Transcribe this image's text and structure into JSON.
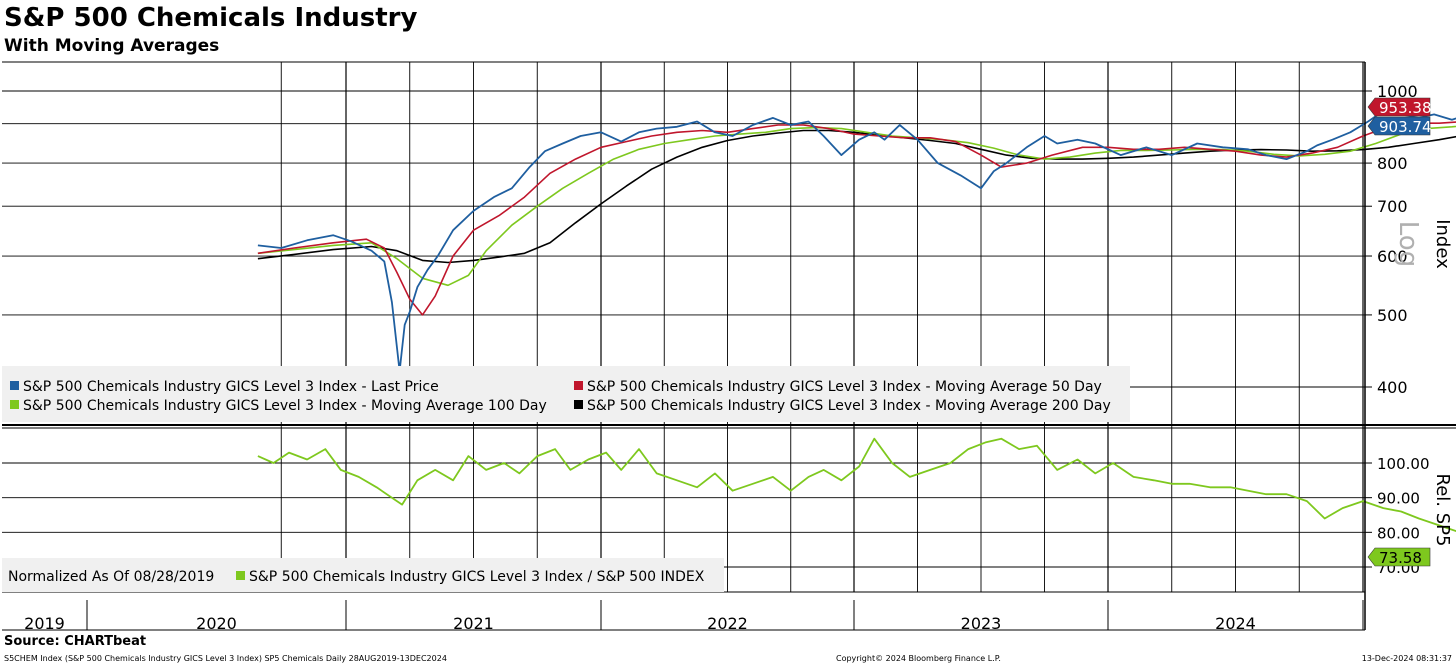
{
  "title": "S&P 500 Chemicals Industry",
  "subtitle": "With Moving Averages",
  "source": "Source: CHARTbeat",
  "footer": {
    "left": "S5CHEM Index (S&P 500 Chemicals Industry GICS Level 3 Index) SP5 Chemicals  Daily 28AUG2019-13DEC2024",
    "center": "Copyright© 2024 Bloomberg Finance L.P.",
    "right": "13-Dec-2024 08:31:37"
  },
  "colors": {
    "last_price": "#1f5fa0",
    "ma50": "#c0162c",
    "ma100": "#7ec81e",
    "ma200": "#000000",
    "relative": "#7ec81e"
  },
  "chart_data": [
    {
      "type": "line",
      "panel": "upper",
      "scale": "log",
      "axis_label": "Index",
      "axis_annotation": "Log",
      "ylim": [
        355,
        1090
      ],
      "yticks": [
        400,
        500,
        600,
        700,
        800,
        1000
      ],
      "ytick_labels": [
        "400",
        "500",
        "600",
        "700",
        "800",
        "1000"
      ],
      "x_categories": [
        "2019",
        "2020",
        "2021",
        "2022",
        "2023",
        "2024"
      ],
      "grid": true,
      "legend_position": "bottom-left",
      "last_value_labels": [
        {
          "series": "S&P 500 Chemicals Industry GICS Level 3 Index - Moving Average 50 Day",
          "text": "953.38",
          "value": 953.38
        },
        {
          "series": "S&P 500 Chemicals Industry GICS Level 3 Index - Last Price",
          "text": "903.74",
          "value": 903.74
        }
      ],
      "series": [
        {
          "name": "S&P 500 Chemicals Industry GICS Level 3 Index - Last Price",
          "key": "last_price",
          "x": [
            2019.66,
            2019.75,
            2019.85,
            2019.95,
            2020.02,
            2020.1,
            2020.15,
            2020.18,
            2020.21,
            2020.23,
            2020.25,
            2020.28,
            2020.32,
            2020.36,
            2020.42,
            2020.5,
            2020.58,
            2020.65,
            2020.72,
            2020.78,
            2020.85,
            2020.92,
            2021.0,
            2021.08,
            2021.15,
            2021.22,
            2021.3,
            2021.38,
            2021.45,
            2021.52,
            2021.6,
            2021.68,
            2021.75,
            2021.82,
            2021.88,
            2021.95,
            2022.02,
            2022.08,
            2022.12,
            2022.18,
            2022.25,
            2022.33,
            2022.42,
            2022.5,
            2022.55,
            2022.6,
            2022.68,
            2022.75,
            2022.8,
            2022.88,
            2022.95,
            2023.05,
            2023.15,
            2023.25,
            2023.35,
            2023.45,
            2023.55,
            2023.62,
            2023.7,
            2023.78,
            2023.82,
            2023.88,
            2023.95,
            2024.02,
            2024.08,
            2024.15,
            2024.22,
            2024.28,
            2024.35,
            2024.42,
            2024.48,
            2024.55,
            2024.6,
            2024.65,
            2024.72,
            2024.78,
            2024.85,
            2024.9,
            2024.95
          ],
          "values": [
            620,
            615,
            630,
            640,
            628,
            610,
            590,
            520,
            420,
            485,
            505,
            545,
            575,
            600,
            650,
            690,
            720,
            740,
            790,
            830,
            850,
            870,
            880,
            855,
            880,
            890,
            895,
            910,
            880,
            870,
            900,
            920,
            900,
            910,
            870,
            820,
            860,
            880,
            860,
            900,
            860,
            800,
            770,
            740,
            780,
            800,
            840,
            870,
            850,
            860,
            850,
            820,
            840,
            820,
            850,
            840,
            835,
            820,
            810,
            830,
            845,
            860,
            880,
            910,
            940,
            930,
            920,
            930,
            915,
            930,
            950,
            970,
            990,
            1000,
            960,
            980,
            940,
            950,
            903.74
          ]
        },
        {
          "name": "S&P 500 Chemicals Industry GICS Level 3 Index - Moving Average 50 Day",
          "key": "ma50",
          "x": [
            2019.66,
            2019.8,
            2019.95,
            2020.08,
            2020.15,
            2020.2,
            2020.25,
            2020.3,
            2020.35,
            2020.42,
            2020.5,
            2020.6,
            2020.7,
            2020.8,
            2020.9,
            2021.0,
            2021.1,
            2021.2,
            2021.3,
            2021.4,
            2021.5,
            2021.6,
            2021.7,
            2021.8,
            2021.9,
            2022.0,
            2022.1,
            2022.2,
            2022.3,
            2022.4,
            2022.5,
            2022.58,
            2022.68,
            2022.78,
            2022.9,
            2023.0,
            2023.1,
            2023.2,
            2023.3,
            2023.4,
            2023.5,
            2023.6,
            2023.7,
            2023.8,
            2023.9,
            2024.0,
            2024.1,
            2024.2,
            2024.3,
            2024.4,
            2024.5,
            2024.6,
            2024.7,
            2024.8,
            2024.9,
            2024.95
          ],
          "values": [
            605,
            615,
            625,
            632,
            615,
            570,
            525,
            500,
            530,
            600,
            650,
            680,
            720,
            775,
            810,
            840,
            855,
            870,
            880,
            885,
            880,
            890,
            900,
            900,
            890,
            875,
            870,
            865,
            865,
            855,
            820,
            790,
            800,
            820,
            840,
            840,
            835,
            835,
            840,
            835,
            830,
            820,
            815,
            825,
            840,
            870,
            895,
            905,
            905,
            910,
            925,
            950,
            970,
            975,
            965,
            953.38
          ]
        },
        {
          "name": "S&P 500 Chemicals Industry GICS Level 3 Index - Moving Average 100 Day",
          "key": "ma100",
          "x": [
            2019.66,
            2019.8,
            2019.95,
            2020.1,
            2020.2,
            2020.3,
            2020.4,
            2020.48,
            2020.55,
            2020.65,
            2020.75,
            2020.85,
            2020.95,
            2021.05,
            2021.15,
            2021.25,
            2021.35,
            2021.45,
            2021.55,
            2021.65,
            2021.75,
            2021.85,
            2021.95,
            2022.05,
            2022.15,
            2022.25,
            2022.35,
            2022.45,
            2022.55,
            2022.65,
            2022.75,
            2022.85,
            2022.95,
            2023.05,
            2023.15,
            2023.25,
            2023.35,
            2023.45,
            2023.55,
            2023.65,
            2023.75,
            2023.85,
            2023.95,
            2024.05,
            2024.15,
            2024.25,
            2024.35,
            2024.45,
            2024.55,
            2024.65,
            2024.75,
            2024.85,
            2024.95
          ],
          "values": [
            605,
            612,
            620,
            625,
            595,
            560,
            548,
            565,
            610,
            660,
            700,
            740,
            775,
            810,
            835,
            850,
            860,
            870,
            875,
            880,
            890,
            893,
            890,
            880,
            870,
            865,
            860,
            852,
            838,
            820,
            810,
            815,
            825,
            832,
            832,
            833,
            835,
            834,
            830,
            822,
            818,
            822,
            830,
            850,
            875,
            890,
            895,
            902,
            915,
            930,
            945,
            948,
            945
          ]
        },
        {
          "name": "S&P 500 Chemicals Industry GICS Level 3 Index - Moving Average 200 Day",
          "key": "ma200",
          "x": [
            2019.66,
            2019.8,
            2019.95,
            2020.1,
            2020.2,
            2020.3,
            2020.4,
            2020.5,
            2020.6,
            2020.7,
            2020.8,
            2020.9,
            2021.0,
            2021.1,
            2021.2,
            2021.3,
            2021.4,
            2021.5,
            2021.6,
            2021.7,
            2021.8,
            2021.9,
            2022.0,
            2022.1,
            2022.2,
            2022.3,
            2022.4,
            2022.5,
            2022.6,
            2022.7,
            2022.8,
            2022.9,
            2023.0,
            2023.1,
            2023.2,
            2023.3,
            2023.4,
            2023.5,
            2023.6,
            2023.7,
            2023.8,
            2023.9,
            2024.0,
            2024.1,
            2024.2,
            2024.3,
            2024.4,
            2024.5,
            2024.6,
            2024.7,
            2024.8,
            2024.9,
            2024.95
          ],
          "values": [
            595,
            603,
            612,
            618,
            610,
            592,
            588,
            592,
            598,
            605,
            625,
            665,
            705,
            745,
            785,
            815,
            840,
            858,
            870,
            878,
            885,
            885,
            880,
            872,
            865,
            858,
            850,
            835,
            820,
            812,
            810,
            810,
            812,
            815,
            820,
            825,
            830,
            833,
            834,
            833,
            830,
            831,
            834,
            840,
            850,
            860,
            872,
            882,
            892,
            905,
            915,
            925,
            930
          ]
        }
      ]
    },
    {
      "type": "line",
      "panel": "lower",
      "axis_label": "Rel. SP5",
      "ylim": [
        62,
        112
      ],
      "yticks": [
        70,
        80,
        90,
        100
      ],
      "ytick_labels": [
        "70.00",
        "80.00",
        "90.00",
        "100.00"
      ],
      "x_categories": [
        "2019",
        "2020",
        "2021",
        "2022",
        "2023",
        "2024"
      ],
      "grid": true,
      "legend_position": "bottom-left",
      "legend_note": "Normalized As Of 08/28/2019",
      "last_value_labels": [
        {
          "series": "S&P 500 Chemicals Industry GICS Level 3 Index / S&P 500 INDEX",
          "text": "73.58",
          "value": 73.58
        }
      ],
      "series": [
        {
          "name": "S&P 500 Chemicals Industry GICS Level 3 Index / S&P 500 INDEX",
          "key": "relative",
          "x": [
            2019.66,
            2019.72,
            2019.78,
            2019.85,
            2019.92,
            2019.98,
            2020.05,
            2020.12,
            2020.18,
            2020.22,
            2020.28,
            2020.35,
            2020.42,
            2020.48,
            2020.55,
            2020.62,
            2020.68,
            2020.75,
            2020.82,
            2020.88,
            2020.95,
            2021.02,
            2021.08,
            2021.15,
            2021.22,
            2021.3,
            2021.38,
            2021.45,
            2021.52,
            2021.6,
            2021.68,
            2021.75,
            2021.82,
            2021.88,
            2021.95,
            2022.02,
            2022.08,
            2022.15,
            2022.22,
            2022.3,
            2022.38,
            2022.45,
            2022.52,
            2022.58,
            2022.65,
            2022.72,
            2022.8,
            2022.88,
            2022.95,
            2023.02,
            2023.1,
            2023.18,
            2023.25,
            2023.32,
            2023.4,
            2023.48,
            2023.55,
            2023.62,
            2023.7,
            2023.78,
            2023.85,
            2023.92,
            2024.0,
            2024.08,
            2024.15,
            2024.22,
            2024.3,
            2024.38,
            2024.45,
            2024.52,
            2024.6,
            2024.68,
            2024.75,
            2024.8,
            2024.88,
            2024.95
          ],
          "values": [
            102,
            100,
            103,
            101,
            104,
            98,
            96,
            93,
            90,
            88,
            95,
            98,
            95,
            102,
            98,
            100,
            97,
            102,
            104,
            98,
            101,
            103,
            98,
            104,
            97,
            95,
            93,
            97,
            92,
            94,
            96,
            92,
            96,
            98,
            95,
            99,
            107,
            100,
            96,
            98,
            100,
            104,
            106,
            107,
            104,
            105,
            98,
            101,
            97,
            100,
            96,
            95,
            94,
            94,
            93,
            93,
            92,
            91,
            91,
            89,
            84,
            87,
            89,
            87,
            86,
            84,
            82,
            80,
            78,
            85,
            83,
            84,
            82,
            82,
            77,
            73.58
          ]
        }
      ]
    }
  ]
}
